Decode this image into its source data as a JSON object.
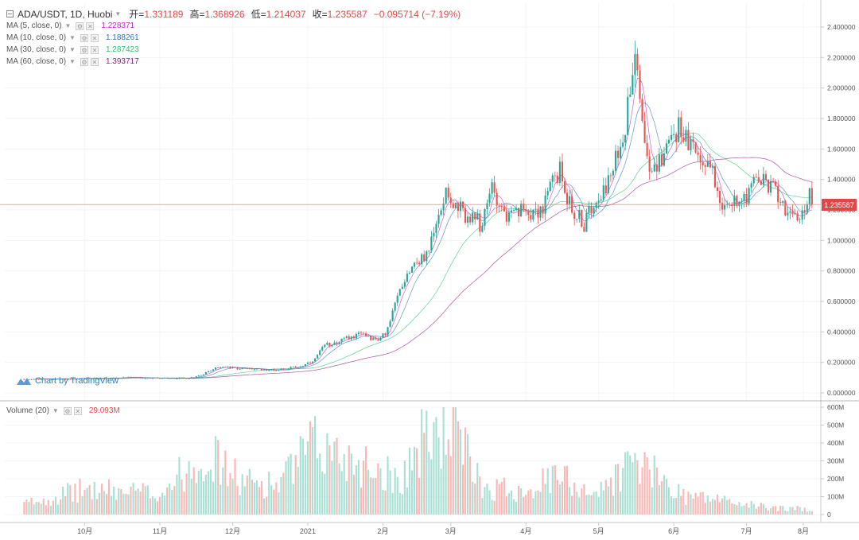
{
  "header": {
    "symbol": "ADA/USDT, 1D, Huobi",
    "open_label": "开=",
    "open": "1.331189",
    "high_label": "高=",
    "high": "1.368926",
    "low_label": "低=",
    "low": "1.214037",
    "close_label": "收=",
    "close": "1.235587",
    "change": "−0.095714 (−7.19%)"
  },
  "indicators": [
    {
      "label": "MA (5, close, 0)",
      "value": "1.228371",
      "color": "#c026c4"
    },
    {
      "label": "MA (10, close, 0)",
      "value": "1.188261",
      "color": "#2c6fbd"
    },
    {
      "label": "MA (30, close, 0)",
      "value": "1.287423",
      "color": "#27c46a"
    },
    {
      "label": "MA (60, close, 0)",
      "value": "1.393717",
      "color": "#8e1d80"
    }
  ],
  "volume_indicator": {
    "label": "Volume (20)",
    "value": "29.093M"
  },
  "watermark": "Chart by TradingView",
  "colors": {
    "up": "#26a69a",
    "down": "#ef5350",
    "vol_up": "#a8e0d4",
    "vol_down": "#f8b8b6",
    "last_price": "#e04848"
  },
  "chart_data": {
    "type": "candlestick",
    "price_axis": {
      "min": 0,
      "max": 2.4,
      "ticks": [
        "0.000000",
        "0.200000",
        "0.400000",
        "0.600000",
        "0.800000",
        "1.000000",
        "1.200000",
        "1.400000",
        "1.600000",
        "1.800000",
        "2.000000",
        "2.200000",
        "2.400000"
      ]
    },
    "volume_axis": {
      "min": 0,
      "max": 600,
      "unit": "M",
      "ticks": [
        "0",
        "100M",
        "200M",
        "300M",
        "400M",
        "500M",
        "600M"
      ]
    },
    "x_axis_labels": [
      "10月",
      "11月",
      "12月",
      "2021",
      "2月",
      "3月",
      "4月",
      "5月",
      "6月",
      "7月",
      "8月"
    ],
    "last_price": "1.235587",
    "price_path": [
      [
        "2020-09-06",
        0.09
      ],
      [
        "2020-09-20",
        0.09
      ],
      [
        "2020-10-05",
        0.095
      ],
      [
        "2020-10-20",
        0.1
      ],
      [
        "2020-11-05",
        0.095
      ],
      [
        "2020-11-15",
        0.1
      ],
      [
        "2020-11-21",
        0.14
      ],
      [
        "2020-11-25",
        0.17
      ],
      [
        "2020-12-05",
        0.16
      ],
      [
        "2020-12-18",
        0.15
      ],
      [
        "2020-12-28",
        0.17
      ],
      [
        "2021-01-03",
        0.2
      ],
      [
        "2021-01-08",
        0.31
      ],
      [
        "2021-01-18",
        0.36
      ],
      [
        "2021-01-24",
        0.39
      ],
      [
        "2021-01-30",
        0.34
      ],
      [
        "2021-02-03",
        0.42
      ],
      [
        "2021-02-08",
        0.68
      ],
      [
        "2021-02-13",
        0.85
      ],
      [
        "2021-02-18",
        0.88
      ],
      [
        "2021-02-22",
        1.03
      ],
      [
        "2021-02-27",
        1.36
      ],
      [
        "2021-03-02",
        1.23
      ],
      [
        "2021-03-08",
        1.15
      ],
      [
        "2021-03-14",
        1.1
      ],
      [
        "2021-03-18",
        1.36
      ],
      [
        "2021-03-24",
        1.15
      ],
      [
        "2021-04-01",
        1.2
      ],
      [
        "2021-04-08",
        1.2
      ],
      [
        "2021-04-12",
        1.4
      ],
      [
        "2021-04-15",
        1.45
      ],
      [
        "2021-04-20",
        1.2
      ],
      [
        "2021-04-25",
        1.1
      ],
      [
        "2021-04-30",
        1.3
      ],
      [
        "2021-05-06",
        1.4
      ],
      [
        "2021-05-12",
        1.75
      ],
      [
        "2021-05-16",
        2.3
      ],
      [
        "2021-05-19",
        1.8
      ],
      [
        "2021-05-23",
        1.4
      ],
      [
        "2021-05-28",
        1.6
      ],
      [
        "2021-06-03",
        1.75
      ],
      [
        "2021-06-10",
        1.55
      ],
      [
        "2021-06-16",
        1.5
      ],
      [
        "2021-06-22",
        1.2
      ],
      [
        "2021-06-30",
        1.3
      ],
      [
        "2021-07-06",
        1.4
      ],
      [
        "2021-07-12",
        1.35
      ],
      [
        "2021-07-18",
        1.2
      ],
      [
        "2021-07-22",
        1.1
      ],
      [
        "2021-07-27",
        1.3
      ],
      [
        "2021-07-28",
        1.235587
      ]
    ],
    "volume_path": [
      [
        "2020-09-06",
        60
      ],
      [
        "2020-10-01",
        140
      ],
      [
        "2020-11-01",
        120
      ],
      [
        "2020-11-20",
        350
      ],
      [
        "2020-12-05",
        180
      ],
      [
        "2020-12-20",
        170
      ],
      [
        "2021-01-03",
        380
      ],
      [
        "2021-01-15",
        330
      ],
      [
        "2021-01-30",
        260
      ],
      [
        "2021-02-08",
        200
      ],
      [
        "2021-02-18",
        420
      ],
      [
        "2021-02-28",
        500
      ],
      [
        "2021-03-15",
        150
      ],
      [
        "2021-03-30",
        140
      ],
      [
        "2021-04-15",
        210
      ],
      [
        "2021-04-20",
        180
      ],
      [
        "2021-05-01",
        120
      ],
      [
        "2021-05-15",
        300
      ],
      [
        "2021-05-20",
        260
      ],
      [
        "2021-06-05",
        110
      ],
      [
        "2021-06-22",
        80
      ],
      [
        "2021-07-01",
        55
      ],
      [
        "2021-07-15",
        35
      ],
      [
        "2021-07-28",
        30
      ]
    ]
  }
}
